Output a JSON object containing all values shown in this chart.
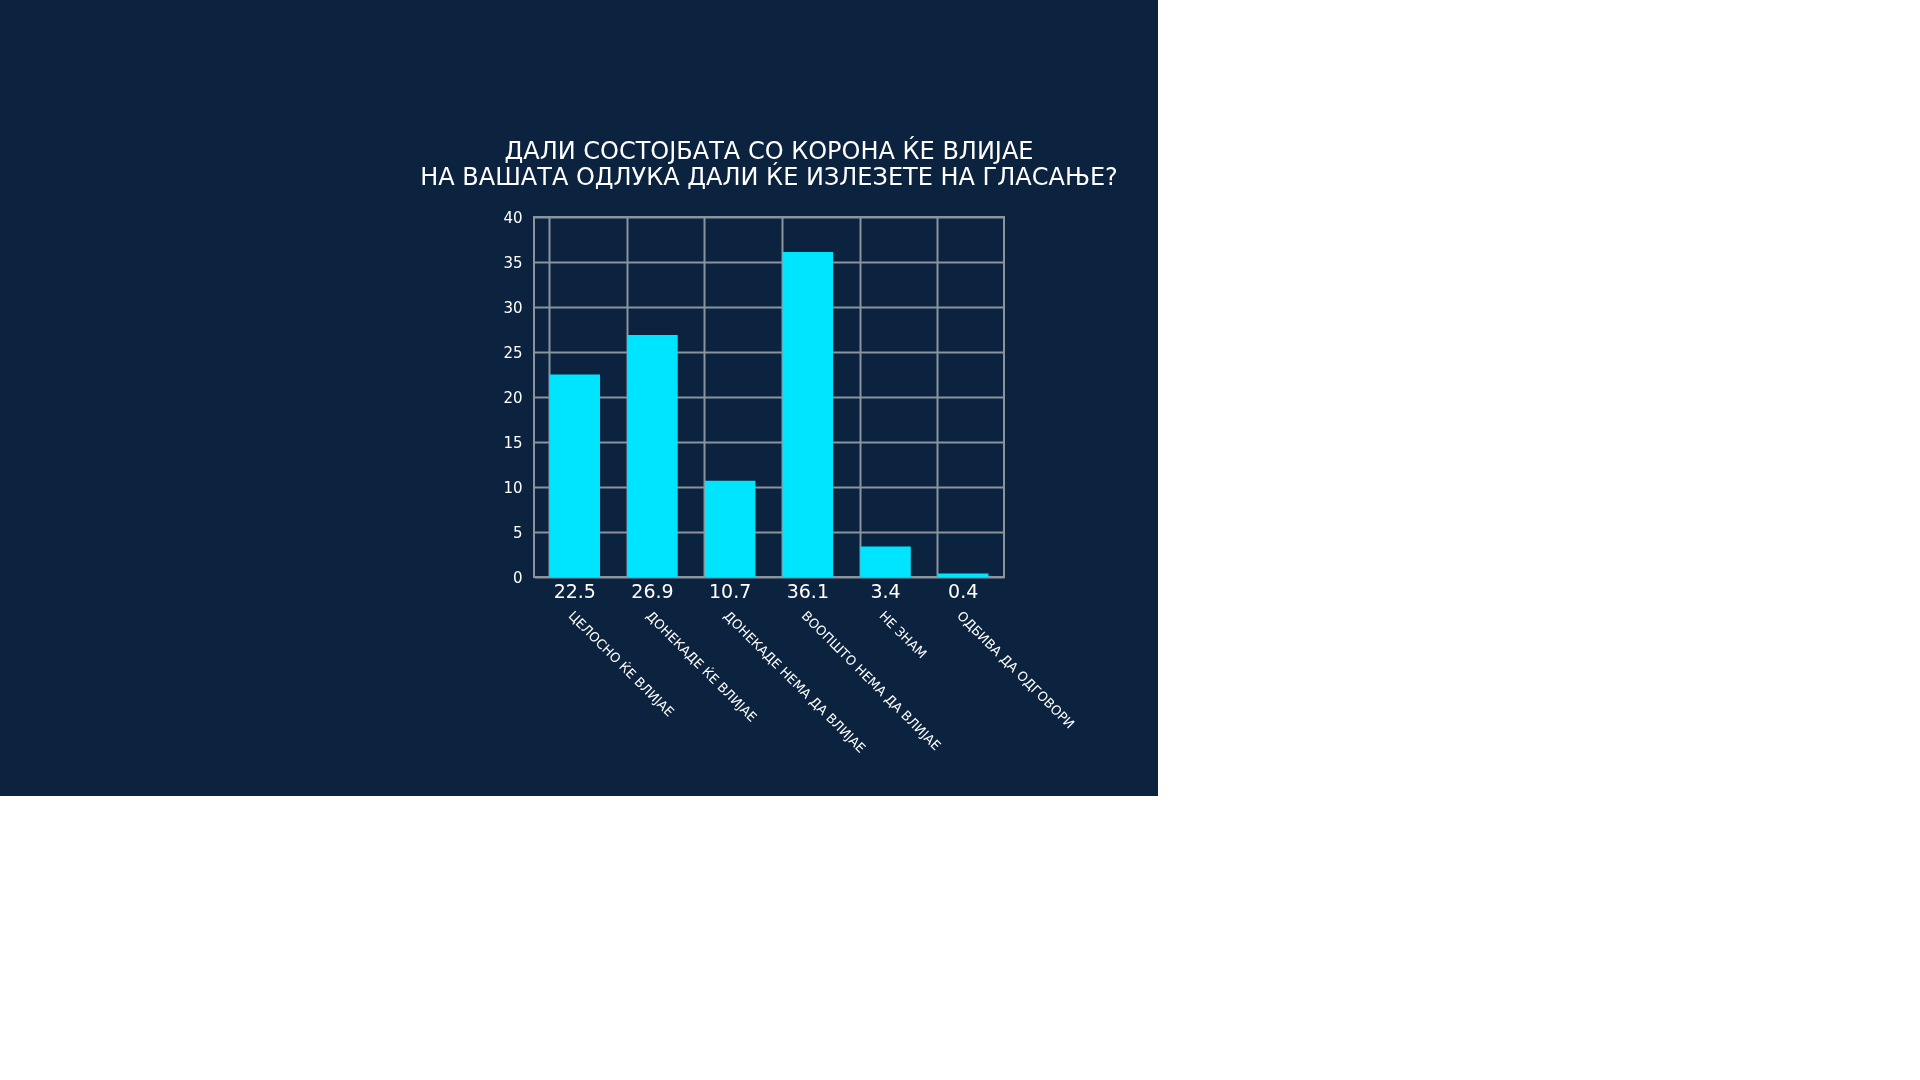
{
  "chart_data": {
    "type": "bar",
    "title": [
      "ДАЛИ СОСТОЈБАТА СО КОРОНА ЌЕ ВЛИЈАЕ",
      "НА ВАШАТА ОДЛУКА ДАЛИ ЌЕ ИЗЛЕЗЕТЕ НА ГЛАСАЊЕ?"
    ],
    "categories": [
      "ЦЕЛОСНО ЌЕ ВЛИЈАЕ",
      "ДОНЕКАДЕ ЌЕ ВЛИЈАЕ",
      "ДОНЕКАДЕ НЕМА ДА ВЛИЈАЕ",
      "ВООПШТО НЕМА ДА ВЛИЈАЕ",
      "НЕ ЗНАМ",
      "ОДБИВА ДА ОДГОВОРИ"
    ],
    "values": [
      22.5,
      26.9,
      10.7,
      36.1,
      3.4,
      0.4
    ],
    "color": "#00e5ff",
    "ylim": [
      0,
      40
    ],
    "yticks": [
      0,
      5,
      10,
      15,
      20,
      25,
      30,
      35,
      40
    ],
    "grid": true,
    "data_labels": true
  }
}
